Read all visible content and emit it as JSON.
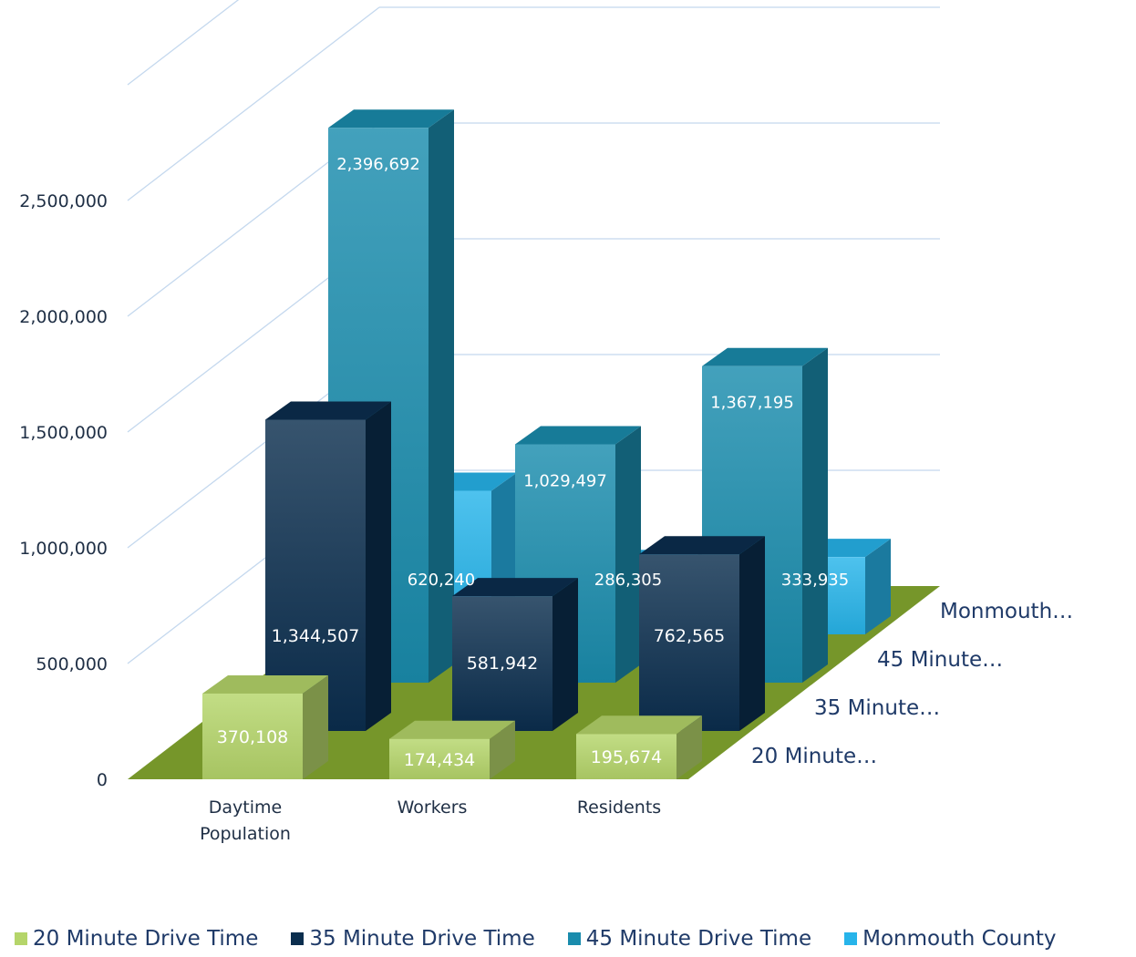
{
  "chart_data": {
    "type": "bar",
    "style": "3d-column",
    "categories": [
      "Daytime Population",
      "Workers",
      "Residents"
    ],
    "series": [
      {
        "name": "20 Minute Drive Time",
        "depth_label": "20 Minute…",
        "color": "#b5d56a",
        "values": [
          370108,
          174434,
          195674
        ],
        "value_labels": [
          "370,108",
          "174,434",
          "195,674"
        ]
      },
      {
        "name": "35 Minute Drive Time",
        "depth_label": "35 Minute…",
        "color": "#0b2e4e",
        "values": [
          1344507,
          581942,
          762565
        ],
        "value_labels": [
          "1,344,507",
          "581,942",
          "762,565"
        ]
      },
      {
        "name": "45 Minute Drive Time",
        "depth_label": "45 Minute…",
        "color": "#1a8cad",
        "values": [
          2396692,
          1029497,
          1367195
        ],
        "value_labels": [
          "2,396,692",
          "1,029,497",
          "1,367,195"
        ]
      },
      {
        "name": "Monmouth County",
        "depth_label": "Monmouth…",
        "color": "#27b4ea",
        "values": [
          620240,
          286305,
          333935
        ],
        "value_labels": [
          "620,240",
          "286,305",
          "333,935"
        ]
      }
    ],
    "y_axis": {
      "ticks": [
        0,
        500000,
        1000000,
        1500000,
        2000000,
        2500000
      ],
      "tick_labels": [
        "0",
        "500,000",
        "1,000,000",
        "1,500,000",
        "2,000,000",
        "2,500,000"
      ],
      "max": 3000000
    },
    "floor_color": "#76962a",
    "gridlines": true,
    "legend_position": "bottom"
  }
}
